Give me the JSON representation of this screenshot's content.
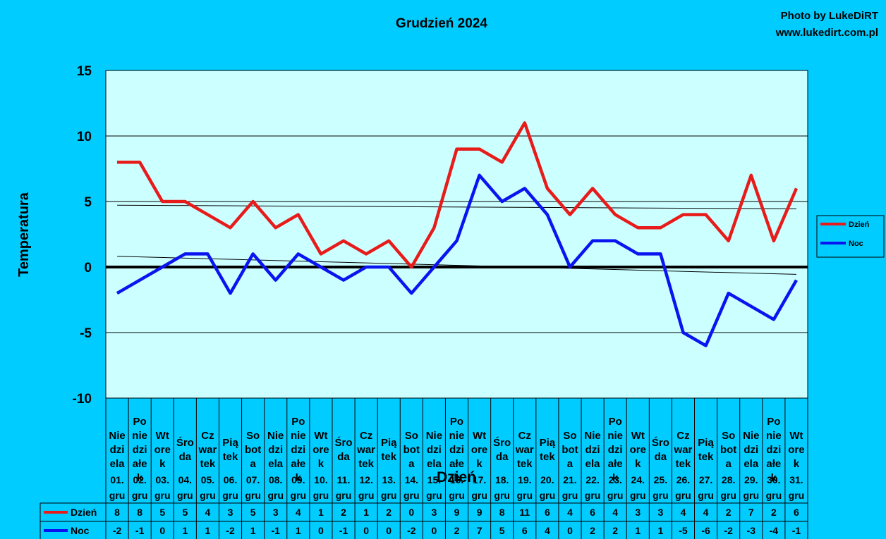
{
  "header": {
    "title": "Grudzień 2024",
    "credit_line1": "Photo by LukeDiRT",
    "credit_line2": "www.lukedirt.com.pl"
  },
  "colors": {
    "background": "#00ccff",
    "plot_area": "#ccffff",
    "dzien": "#e81b1b",
    "noc": "#0a14f0"
  },
  "chart_data": {
    "type": "line",
    "title": "Grudzień 2024",
    "xlabel": "Dzień",
    "ylabel": "Temperatura",
    "ylim": [
      -10,
      15
    ],
    "yticks": [
      15,
      10,
      5,
      0,
      -5,
      -10
    ],
    "grid": true,
    "legend": "right",
    "trendlines": true,
    "categories": [
      {
        "day": [
          "Nie",
          "dzi",
          "ela"
        ],
        "date": [
          "01.",
          "gru"
        ]
      },
      {
        "day": [
          "Po",
          "nie",
          "dzi",
          "ałe",
          "k"
        ],
        "date": [
          "02.",
          "gru"
        ]
      },
      {
        "day": [
          "Wt",
          "ore",
          "k"
        ],
        "date": [
          "03.",
          "gru"
        ]
      },
      {
        "day": [
          "Śro",
          "da"
        ],
        "date": [
          "04.",
          "gru"
        ]
      },
      {
        "day": [
          "Cz",
          "war",
          "tek"
        ],
        "date": [
          "05.",
          "gru"
        ]
      },
      {
        "day": [
          "Pią",
          "tek"
        ],
        "date": [
          "06.",
          "gru"
        ]
      },
      {
        "day": [
          "So",
          "bot",
          "a"
        ],
        "date": [
          "07.",
          "gru"
        ]
      },
      {
        "day": [
          "Nie",
          "dzi",
          "ela"
        ],
        "date": [
          "08.",
          "gru"
        ]
      },
      {
        "day": [
          "Po",
          "nie",
          "dzi",
          "ałe",
          "k"
        ],
        "date": [
          "09.",
          "gru"
        ]
      },
      {
        "day": [
          "Wt",
          "ore",
          "k"
        ],
        "date": [
          "10.",
          "gru"
        ]
      },
      {
        "day": [
          "Śro",
          "da"
        ],
        "date": [
          "11.",
          "gru"
        ]
      },
      {
        "day": [
          "Cz",
          "war",
          "tek"
        ],
        "date": [
          "12.",
          "gru"
        ]
      },
      {
        "day": [
          "Pią",
          "tek"
        ],
        "date": [
          "13.",
          "gru"
        ]
      },
      {
        "day": [
          "So",
          "bot",
          "a"
        ],
        "date": [
          "14.",
          "gru"
        ]
      },
      {
        "day": [
          "Nie",
          "dzi",
          "ela"
        ],
        "date": [
          "15.",
          "gru"
        ]
      },
      {
        "day": [
          "Po",
          "nie",
          "dzi",
          "ałe",
          "k"
        ],
        "date": [
          "16.",
          "gru"
        ]
      },
      {
        "day": [
          "Wt",
          "ore",
          "k"
        ],
        "date": [
          "17.",
          "gru"
        ]
      },
      {
        "day": [
          "Śro",
          "da"
        ],
        "date": [
          "18.",
          "gru"
        ]
      },
      {
        "day": [
          "Cz",
          "war",
          "tek"
        ],
        "date": [
          "19.",
          "gru"
        ]
      },
      {
        "day": [
          "Pią",
          "tek"
        ],
        "date": [
          "20.",
          "gru"
        ]
      },
      {
        "day": [
          "So",
          "bot",
          "a"
        ],
        "date": [
          "21.",
          "gru"
        ]
      },
      {
        "day": [
          "Nie",
          "dzi",
          "ela"
        ],
        "date": [
          "22.",
          "gru"
        ]
      },
      {
        "day": [
          "Po",
          "nie",
          "dzi",
          "ałe",
          "k"
        ],
        "date": [
          "23.",
          "gru"
        ]
      },
      {
        "day": [
          "Wt",
          "ore",
          "k"
        ],
        "date": [
          "24.",
          "gru"
        ]
      },
      {
        "day": [
          "Śro",
          "da"
        ],
        "date": [
          "25.",
          "gru"
        ]
      },
      {
        "day": [
          "Cz",
          "war",
          "tek"
        ],
        "date": [
          "26.",
          "gru"
        ]
      },
      {
        "day": [
          "Pią",
          "tek"
        ],
        "date": [
          "27.",
          "gru"
        ]
      },
      {
        "day": [
          "So",
          "bot",
          "a"
        ],
        "date": [
          "28.",
          "gru"
        ]
      },
      {
        "day": [
          "Nie",
          "dzi",
          "ela"
        ],
        "date": [
          "29.",
          "gru"
        ]
      },
      {
        "day": [
          "Po",
          "nie",
          "dzi",
          "ałe",
          "k"
        ],
        "date": [
          "30.",
          "gru"
        ]
      },
      {
        "day": [
          "Wt",
          "ore",
          "k"
        ],
        "date": [
          "31.",
          "gru"
        ]
      }
    ],
    "series": [
      {
        "name": "Dzień",
        "color": "#e81b1b",
        "values": [
          8,
          8,
          5,
          5,
          4,
          3,
          5,
          3,
          4,
          1,
          2,
          1,
          2,
          0,
          3,
          9,
          9,
          8,
          11,
          6,
          4,
          6,
          4,
          3,
          3,
          4,
          4,
          2,
          7,
          2,
          6
        ]
      },
      {
        "name": "Noc",
        "color": "#0a14f0",
        "values": [
          -2,
          -1,
          0,
          1,
          1,
          -2,
          1,
          -1,
          1,
          0,
          -1,
          0,
          0,
          -2,
          0,
          2,
          7,
          5,
          6,
          4,
          0,
          2,
          2,
          1,
          1,
          -5,
          -6,
          -2,
          -3,
          -4,
          -1
        ]
      }
    ]
  }
}
